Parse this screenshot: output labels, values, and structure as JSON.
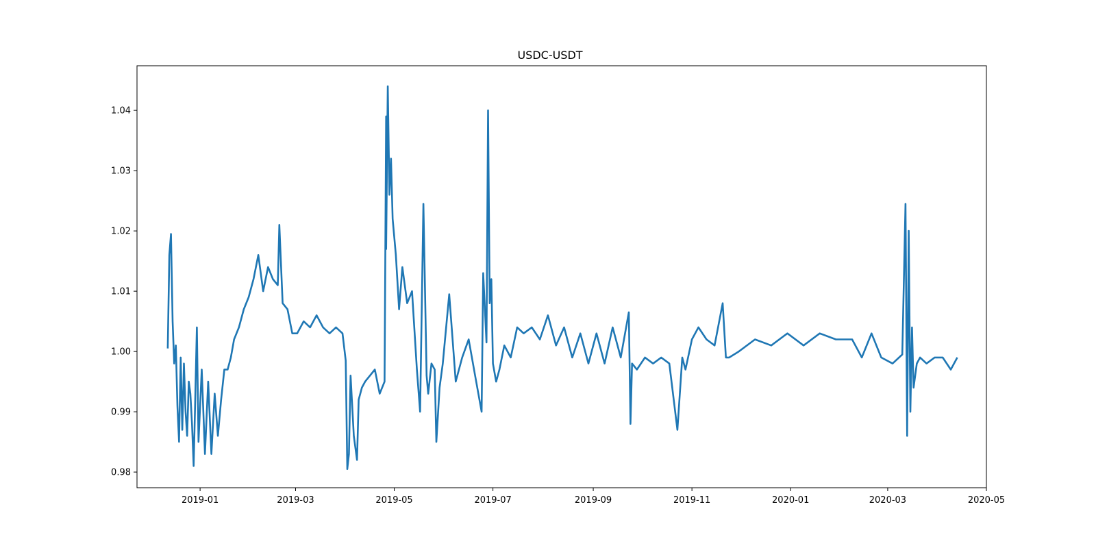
{
  "chart_data": {
    "type": "line",
    "title": "USDC-USDT",
    "xlabel": "",
    "ylabel": "",
    "x_axis_type": "date",
    "xlim": [
      "2018-11-23",
      "2020-05-01"
    ],
    "ylim": [
      0.9774,
      1.0474
    ],
    "x_ticks": [
      "2019-01",
      "2019-03",
      "2019-05",
      "2019-07",
      "2019-09",
      "2019-11",
      "2020-01",
      "2020-03",
      "2020-05"
    ],
    "y_ticks": [
      "0.98",
      "0.99",
      "1.00",
      "1.01",
      "1.02",
      "1.03",
      "1.04"
    ],
    "grid": false,
    "legend": "none",
    "line_color": "#1f77b4",
    "series": [
      {
        "x": [
          "2018-12-12",
          "2018-12-13",
          "2018-12-14",
          "2018-12-15",
          "2018-12-16",
          "2018-12-17",
          "2018-12-18",
          "2018-12-19",
          "2018-12-20",
          "2018-12-21",
          "2018-12-22",
          "2018-12-23",
          "2018-12-24",
          "2018-12-25",
          "2018-12-26",
          "2018-12-27",
          "2018-12-28",
          "2018-12-29",
          "2018-12-30",
          "2018-12-31",
          "2019-01-02",
          "2019-01-04",
          "2019-01-06",
          "2019-01-08",
          "2019-01-10",
          "2019-01-12",
          "2019-01-14",
          "2019-01-16",
          "2019-01-18",
          "2019-01-20",
          "2019-01-22",
          "2019-01-25",
          "2019-01-28",
          "2019-01-31",
          "2019-02-03",
          "2019-02-06",
          "2019-02-09",
          "2019-02-12",
          "2019-02-15",
          "2019-02-18",
          "2019-02-19",
          "2019-02-21",
          "2019-02-24",
          "2019-02-27",
          "2019-03-02",
          "2019-03-06",
          "2019-03-10",
          "2019-03-14",
          "2019-03-18",
          "2019-03-22",
          "2019-03-26",
          "2019-03-30",
          "2019-04-01",
          "2019-04-02",
          "2019-04-03",
          "2019-04-04",
          "2019-04-06",
          "2019-04-08",
          "2019-04-09",
          "2019-04-11",
          "2019-04-13",
          "2019-04-16",
          "2019-04-19",
          "2019-04-22",
          "2019-04-25",
          "2019-04-26",
          "2019-04-26",
          "2019-04-27",
          "2019-04-28",
          "2019-04-29",
          "2019-04-30",
          "2019-05-02",
          "2019-05-04",
          "2019-05-06",
          "2019-05-09",
          "2019-05-12",
          "2019-05-15",
          "2019-05-17",
          "2019-05-19",
          "2019-05-21",
          "2019-05-22",
          "2019-05-24",
          "2019-05-26",
          "2019-05-27",
          "2019-05-29",
          "2019-05-31",
          "2019-06-04",
          "2019-06-08",
          "2019-06-12",
          "2019-06-16",
          "2019-06-20",
          "2019-06-24",
          "2019-06-25",
          "2019-06-27",
          "2019-06-28",
          "2019-06-29",
          "2019-06-30",
          "2019-07-01",
          "2019-07-03",
          "2019-07-05",
          "2019-07-08",
          "2019-07-12",
          "2019-07-16",
          "2019-07-20",
          "2019-07-25",
          "2019-07-30",
          "2019-08-04",
          "2019-08-09",
          "2019-08-14",
          "2019-08-19",
          "2019-08-24",
          "2019-08-29",
          "2019-09-03",
          "2019-09-08",
          "2019-09-13",
          "2019-09-18",
          "2019-09-23",
          "2019-09-24",
          "2019-09-25",
          "2019-09-28",
          "2019-10-03",
          "2019-10-08",
          "2019-10-13",
          "2019-10-18",
          "2019-10-23",
          "2019-10-26",
          "2019-10-27",
          "2019-10-28",
          "2019-11-01",
          "2019-11-05",
          "2019-11-10",
          "2019-11-15",
          "2019-11-20",
          "2019-11-22",
          "2019-11-24",
          "2019-11-30",
          "2019-12-10",
          "2019-12-20",
          "2019-12-30",
          "2020-01-09",
          "2020-01-19",
          "2020-01-29",
          "2020-02-08",
          "2020-02-14",
          "2020-02-20",
          "2020-02-26",
          "2020-03-04",
          "2020-03-10",
          "2020-03-12",
          "2020-03-13",
          "2020-03-14",
          "2020-03-15",
          "2020-03-16",
          "2020-03-17",
          "2020-03-19",
          "2020-03-21",
          "2020-03-25",
          "2020-03-30",
          "2020-04-04",
          "2020-04-09",
          "2020-04-13"
        ],
        "y": [
          1.0005,
          1.016,
          1.0195,
          1.005,
          0.998,
          1.001,
          0.991,
          0.985,
          0.999,
          0.987,
          0.998,
          0.99,
          0.986,
          0.995,
          0.993,
          0.988,
          0.981,
          0.992,
          1.004,
          0.985,
          0.997,
          0.983,
          0.995,
          0.983,
          0.993,
          0.986,
          0.992,
          0.997,
          0.997,
          0.999,
          1.002,
          1.004,
          1.007,
          1.009,
          1.012,
          1.016,
          1.01,
          1.014,
          1.012,
          1.011,
          1.021,
          1.008,
          1.007,
          1.003,
          1.003,
          1.005,
          1.004,
          1.006,
          1.004,
          1.003,
          1.004,
          1.003,
          0.9985,
          0.9805,
          0.983,
          0.996,
          0.986,
          0.982,
          0.992,
          0.994,
          0.995,
          0.996,
          0.997,
          0.993,
          0.995,
          1.039,
          1.017,
          1.044,
          1.026,
          1.032,
          1.022,
          1.016,
          1.007,
          1.014,
          1.008,
          1.01,
          0.997,
          0.99,
          1.0245,
          0.996,
          0.993,
          0.998,
          0.997,
          0.985,
          0.994,
          0.998,
          1.0095,
          0.995,
          0.999,
          1.002,
          0.996,
          0.99,
          1.013,
          1.0015,
          1.04,
          1.008,
          1.012,
          0.998,
          0.995,
          0.997,
          1.001,
          0.999,
          1.004,
          1.003,
          1.004,
          1.002,
          1.006,
          1.001,
          1.004,
          0.999,
          1.003,
          0.998,
          1.003,
          0.998,
          1.004,
          0.999,
          1.0065,
          0.988,
          0.998,
          0.997,
          0.999,
          0.998,
          0.999,
          0.998,
          0.987,
          0.999,
          0.998,
          0.997,
          1.002,
          1.004,
          1.002,
          1.001,
          1.008,
          0.999,
          0.999,
          1.0,
          1.002,
          1.001,
          1.003,
          1.001,
          1.003,
          1.002,
          1.002,
          0.999,
          1.003,
          0.999,
          0.998,
          0.9995,
          1.0245,
          0.986,
          1.02,
          0.99,
          1.004,
          0.994,
          0.998,
          0.999,
          0.998,
          0.999,
          0.999,
          0.997,
          0.999
        ]
      }
    ]
  }
}
